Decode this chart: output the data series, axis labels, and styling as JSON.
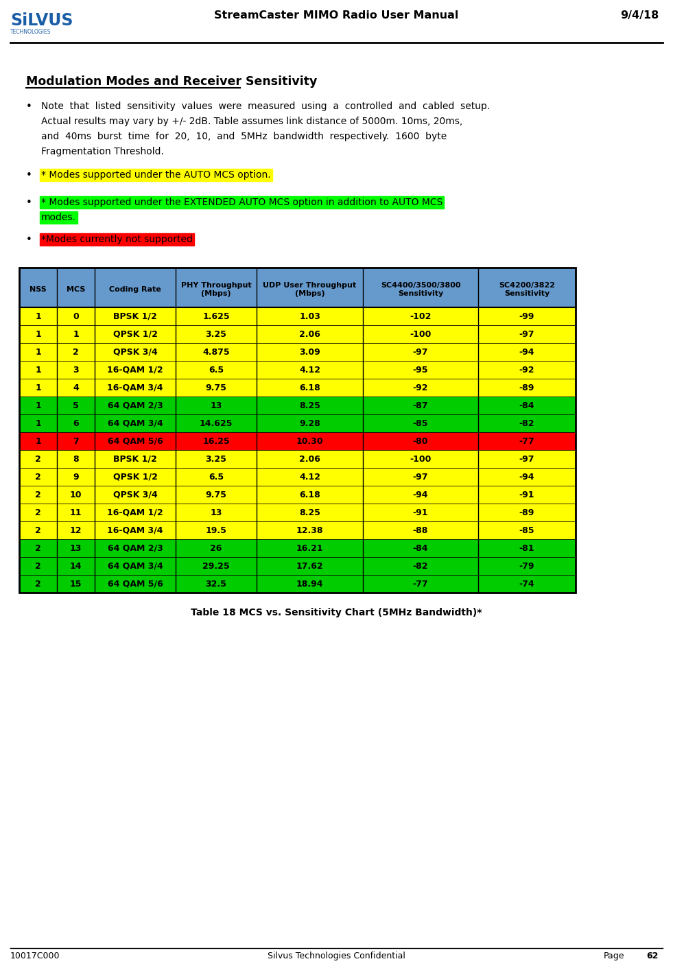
{
  "header_title": "StreamCaster MIMO Radio User Manual",
  "header_date": "9/4/18",
  "footer_left": "10017C000",
  "footer_center": "Silvus Technologies Confidential",
  "footer_right": "Page    62",
  "section_title": "Modulation Modes and Receiver Sensitivity",
  "bullet2": "* Modes supported under the AUTO MCS option.",
  "bullet3_line1": "* Modes supported under the EXTENDED AUTO MCS option in addition to AUTO MCS",
  "bullet3_line2": "modes.",
  "bullet4": "*Modes currently not supported",
  "bullet2_bg": "#FFFF00",
  "bullet3_bg": "#00FF00",
  "bullet4_bg": "#FF0000",
  "table_caption": "Table 18 MCS vs. Sensitivity Chart (5MHz Bandwidth)*",
  "col_headers": [
    "NSS",
    "MCS",
    "Coding Rate",
    "PHY Throughput\n(Mbps)",
    "UDP User Throughput\n(Mbps)",
    "SC4400/3500/3800\nSensitivity",
    "SC4200/3822\nSensitivity"
  ],
  "header_bg": "#6699CC",
  "rows": [
    {
      "nss": "1",
      "mcs": "0",
      "coding": "BPSK 1/2",
      "phy": "1.625",
      "udp": "1.03",
      "sc44": "-102",
      "sc42": "-99",
      "bg": "#FFFF00"
    },
    {
      "nss": "1",
      "mcs": "1",
      "coding": "QPSK 1/2",
      "phy": "3.25",
      "udp": "2.06",
      "sc44": "-100",
      "sc42": "-97",
      "bg": "#FFFF00"
    },
    {
      "nss": "1",
      "mcs": "2",
      "coding": "QPSK 3/4",
      "phy": "4.875",
      "udp": "3.09",
      "sc44": "-97",
      "sc42": "-94",
      "bg": "#FFFF00"
    },
    {
      "nss": "1",
      "mcs": "3",
      "coding": "16-QAM 1/2",
      "phy": "6.5",
      "udp": "4.12",
      "sc44": "-95",
      "sc42": "-92",
      "bg": "#FFFF00"
    },
    {
      "nss": "1",
      "mcs": "4",
      "coding": "16-QAM 3/4",
      "phy": "9.75",
      "udp": "6.18",
      "sc44": "-92",
      "sc42": "-89",
      "bg": "#FFFF00"
    },
    {
      "nss": "1",
      "mcs": "5",
      "coding": "64 QAM 2/3",
      "phy": "13",
      "udp": "8.25",
      "sc44": "-87",
      "sc42": "-84",
      "bg": "#00CC00"
    },
    {
      "nss": "1",
      "mcs": "6",
      "coding": "64 QAM 3/4",
      "phy": "14.625",
      "udp": "9.28",
      "sc44": "-85",
      "sc42": "-82",
      "bg": "#00CC00"
    },
    {
      "nss": "1",
      "mcs": "7",
      "coding": "64 QAM 5/6",
      "phy": "16.25",
      "udp": "10.30",
      "sc44": "-80",
      "sc42": "-77",
      "bg": "#FF0000"
    },
    {
      "nss": "2",
      "mcs": "8",
      "coding": "BPSK 1/2",
      "phy": "3.25",
      "udp": "2.06",
      "sc44": "-100",
      "sc42": "-97",
      "bg": "#FFFF00"
    },
    {
      "nss": "2",
      "mcs": "9",
      "coding": "QPSK 1/2",
      "phy": "6.5",
      "udp": "4.12",
      "sc44": "-97",
      "sc42": "-94",
      "bg": "#FFFF00"
    },
    {
      "nss": "2",
      "mcs": "10",
      "coding": "QPSK 3/4",
      "phy": "9.75",
      "udp": "6.18",
      "sc44": "-94",
      "sc42": "-91",
      "bg": "#FFFF00"
    },
    {
      "nss": "2",
      "mcs": "11",
      "coding": "16-QAM 1/2",
      "phy": "13",
      "udp": "8.25",
      "sc44": "-91",
      "sc42": "-89",
      "bg": "#FFFF00"
    },
    {
      "nss": "2",
      "mcs": "12",
      "coding": "16-QAM 3/4",
      "phy": "19.5",
      "udp": "12.38",
      "sc44": "-88",
      "sc42": "-85",
      "bg": "#FFFF00"
    },
    {
      "nss": "2",
      "mcs": "13",
      "coding": "64 QAM 2/3",
      "phy": "26",
      "udp": "16.21",
      "sc44": "-84",
      "sc42": "-81",
      "bg": "#00CC00"
    },
    {
      "nss": "2",
      "mcs": "14",
      "coding": "64 QAM 3/4",
      "phy": "29.25",
      "udp": "17.62",
      "sc44": "-82",
      "sc42": "-79",
      "bg": "#00CC00"
    },
    {
      "nss": "2",
      "mcs": "15",
      "coding": "64 QAM 5/6",
      "phy": "32.5",
      "udp": "18.94",
      "sc44": "-77",
      "sc42": "-74",
      "bg": "#00CC00"
    }
  ],
  "logo_blue": "#1B5EA6",
  "bullet1_lines": [
    "Note  that  listed  sensitivity  values  were  measured  using  a  controlled  and  cabled  setup.",
    "Actual results may vary by +/- 2dB. Table assumes link distance of 5000m. 10ms, 20ms,",
    "and  40ms  burst  time  for  20,  10,  and  5MHz  bandwidth  respectively.  1600  byte",
    "Fragmentation Threshold."
  ]
}
